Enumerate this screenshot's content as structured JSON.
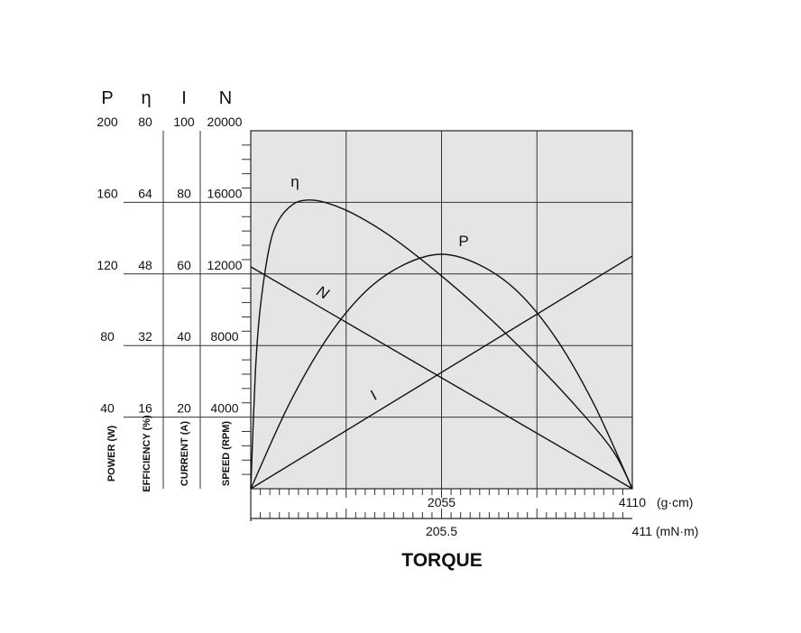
{
  "chart_data": {
    "type": "line",
    "title": "",
    "xlabel": "TORQUE",
    "x_axes": [
      {
        "unit": "(g·cm)",
        "range": [
          0,
          4110
        ],
        "tick_labels": [
          "2055",
          "4110"
        ]
      },
      {
        "unit": "(mN·m)",
        "range": [
          0,
          411
        ],
        "tick_labels": [
          "205.5",
          "411"
        ]
      }
    ],
    "y_axes": [
      {
        "symbol": "P",
        "label": "POWER (W)",
        "range": [
          0,
          200
        ],
        "tick_labels": [
          "40",
          "80",
          "120",
          "160",
          "200"
        ]
      },
      {
        "symbol": "η",
        "label": "EFFICIENCY (%)",
        "range": [
          0,
          80
        ],
        "tick_labels": [
          "16",
          "32",
          "48",
          "64",
          "80"
        ]
      },
      {
        "symbol": "I",
        "label": "CURRENT (A)",
        "range": [
          0,
          100
        ],
        "tick_labels": [
          "20",
          "40",
          "60",
          "80",
          "100"
        ]
      },
      {
        "symbol": "N",
        "label": "SPEED (RPM)",
        "range": [
          0,
          20000
        ],
        "tick_labels": [
          "4000",
          "8000",
          "12000",
          "16000",
          "20000"
        ]
      }
    ],
    "grid": true,
    "series": [
      {
        "name": "N",
        "axis": "N",
        "x": [
          0,
          4110
        ],
        "values": [
          12400,
          0
        ]
      },
      {
        "name": "I",
        "axis": "I",
        "x": [
          0,
          4110
        ],
        "values": [
          0,
          65
        ]
      },
      {
        "name": "P",
        "axis": "P",
        "x": [
          0,
          411,
          822,
          1233,
          1644,
          2055,
          2466,
          2877,
          3288,
          3699,
          4110
        ],
        "values": [
          0,
          47,
          84,
          110,
          125,
          131,
          125,
          110,
          84,
          47,
          0
        ]
      },
      {
        "name": "η",
        "axis": "η",
        "x": [
          0,
          50,
          100,
          200,
          300,
          450,
          600,
          800,
          1100,
          1500,
          2000,
          2500,
          3000,
          3500,
          3900,
          4110
        ],
        "values": [
          0,
          26,
          40,
          54,
          60,
          63.5,
          64.5,
          64,
          61.5,
          56.5,
          48.5,
          39.5,
          29.5,
          18.5,
          8.5,
          0
        ]
      }
    ]
  }
}
